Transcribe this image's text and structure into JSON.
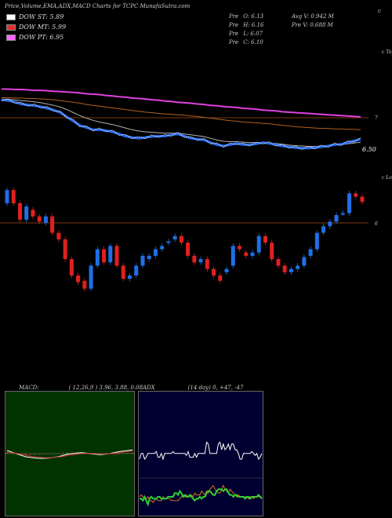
{
  "header": {
    "title": "Price,Volume,EMA,ADX,MACD Charts for TCPC MunafaSutra.com",
    "marker": "c"
  },
  "legend": [
    {
      "label": "DOW ST: 5.89",
      "color": "#ffffff"
    },
    {
      "label": "DOW MT: 5.99",
      "color": "#e03030"
    },
    {
      "label": "DOW PT: 6.95",
      "color": "#ff66ff"
    }
  ],
  "stats": {
    "col1": [
      {
        "k": "Pre",
        "v": "O: 6.13"
      },
      {
        "k": "Pre",
        "v": "H: 6.16"
      },
      {
        "k": "Pre",
        "v": "L: 6.07"
      },
      {
        "k": "Pre",
        "v": "C: 6.10"
      }
    ],
    "col2": [
      {
        "text": "Avg V: 0.942  M"
      },
      {
        "text": "Pre  V: 0.688  M"
      }
    ]
  },
  "price_panel": {
    "right_top": "c Tops",
    "price_label": "6.50",
    "mid_label": "7"
  },
  "candle_panel": {
    "right_top": "c Lows",
    "mid_label": "6"
  },
  "macd": {
    "title": "MACD:",
    "params": "( 12,26,9 ) 3.96, 3.88, 0.08",
    "colors": {
      "bg": "#003300",
      "macd": "#ffffff",
      "signal": "#d03030"
    }
  },
  "adx": {
    "title": "ADX",
    "params": "(14  day) 0, +47, -47",
    "colors": {
      "bg": "#000030",
      "adx": "#ffffff",
      "plus": "#30d030",
      "minus": "#e07020"
    }
  },
  "chart_data": {
    "type": "candlestick",
    "candles": [
      {
        "o": 6.9,
        "c": 7.1
      },
      {
        "o": 7.1,
        "c": 6.9
      },
      {
        "o": 6.9,
        "c": 6.65
      },
      {
        "o": 6.65,
        "c": 6.85
      },
      {
        "o": 6.8,
        "c": 6.7
      },
      {
        "o": 6.7,
        "c": 6.62
      },
      {
        "o": 6.6,
        "c": 6.7
      },
      {
        "o": 6.7,
        "c": 6.45
      },
      {
        "o": 6.45,
        "c": 6.35
      },
      {
        "o": 6.35,
        "c": 6.05
      },
      {
        "o": 6.05,
        "c": 5.8
      },
      {
        "o": 5.8,
        "c": 5.7
      },
      {
        "o": 5.72,
        "c": 5.6
      },
      {
        "o": 5.6,
        "c": 5.95
      },
      {
        "o": 5.95,
        "c": 6.2
      },
      {
        "o": 6.2,
        "c": 6.0
      },
      {
        "o": 6.0,
        "c": 6.25
      },
      {
        "o": 6.25,
        "c": 5.95
      },
      {
        "o": 5.95,
        "c": 5.75
      },
      {
        "o": 5.75,
        "c": 5.8
      },
      {
        "o": 5.8,
        "c": 5.95
      },
      {
        "o": 5.95,
        "c": 6.1
      },
      {
        "o": 6.05,
        "c": 6.1
      },
      {
        "o": 6.1,
        "c": 6.2
      },
      {
        "o": 6.2,
        "c": 6.25
      },
      {
        "o": 6.3,
        "c": 6.32
      },
      {
        "o": 6.35,
        "c": 6.4
      },
      {
        "o": 6.4,
        "c": 6.3
      },
      {
        "o": 6.3,
        "c": 6.1
      },
      {
        "o": 6.1,
        "c": 6.0
      },
      {
        "o": 6.0,
        "c": 6.05
      },
      {
        "o": 6.05,
        "c": 5.9
      },
      {
        "o": 5.9,
        "c": 5.8
      },
      {
        "o": 5.8,
        "c": 5.72
      },
      {
        "o": 5.85,
        "c": 5.9
      },
      {
        "o": 5.95,
        "c": 6.25
      },
      {
        "o": 6.25,
        "c": 6.2
      },
      {
        "o": 6.15,
        "c": 6.1
      },
      {
        "o": 6.1,
        "c": 6.15
      },
      {
        "o": 6.15,
        "c": 6.4
      },
      {
        "o": 6.4,
        "c": 6.3
      },
      {
        "o": 6.3,
        "c": 6.05
      },
      {
        "o": 6.05,
        "c": 5.95
      },
      {
        "o": 5.95,
        "c": 5.85
      },
      {
        "o": 5.85,
        "c": 5.9
      },
      {
        "o": 5.9,
        "c": 5.95
      },
      {
        "o": 5.95,
        "c": 6.08
      },
      {
        "o": 6.1,
        "c": 6.2
      },
      {
        "o": 6.2,
        "c": 6.45
      },
      {
        "o": 6.45,
        "c": 6.55
      },
      {
        "o": 6.55,
        "c": 6.62
      },
      {
        "o": 6.62,
        "c": 6.72
      },
      {
        "o": 6.75,
        "c": 6.75
      },
      {
        "o": 6.75,
        "c": 7.05
      },
      {
        "o": 7.05,
        "c": 7.0
      },
      {
        "o": 7.0,
        "c": 6.92
      }
    ],
    "ema_short": [
      7.6,
      7.58,
      7.55,
      7.5,
      7.48,
      7.46,
      7.44,
      7.4,
      7.36,
      7.3,
      7.2,
      7.1,
      7.0,
      6.95,
      6.9,
      6.9,
      6.88,
      6.85,
      6.8,
      6.75,
      6.72,
      6.7,
      6.72,
      6.74,
      6.75,
      6.75,
      6.78,
      6.8,
      6.75,
      6.7,
      6.68,
      6.66,
      6.6,
      6.55,
      6.52,
      6.55,
      6.58,
      6.55,
      6.55,
      6.57,
      6.6,
      6.58,
      6.55,
      6.52,
      6.5,
      6.48,
      6.47,
      6.47,
      6.48,
      6.5,
      6.52,
      6.55,
      6.56,
      6.6,
      6.64,
      6.68
    ],
    "ema_mid": [
      7.62,
      7.61,
      7.6,
      7.58,
      7.57,
      7.55,
      7.53,
      7.5,
      7.47,
      7.43,
      7.37,
      7.3,
      7.23,
      7.17,
      7.12,
      7.08,
      7.05,
      7.02,
      6.98,
      6.94,
      6.9,
      6.87,
      6.85,
      6.84,
      6.83,
      6.82,
      6.82,
      6.82,
      6.8,
      6.78,
      6.76,
      6.74,
      6.7,
      6.66,
      6.63,
      6.62,
      6.62,
      6.61,
      6.6,
      6.6,
      6.6,
      6.59,
      6.58,
      6.56,
      6.54,
      6.53,
      6.52,
      6.51,
      6.51,
      6.52,
      6.53,
      6.54,
      6.55,
      6.57,
      6.59,
      6.61
    ],
    "ema_long": [
      7.65,
      7.65,
      7.64,
      7.64,
      7.63,
      7.63,
      7.62,
      7.61,
      7.6,
      7.58,
      7.56,
      7.54,
      7.52,
      7.49,
      7.47,
      7.45,
      7.43,
      7.41,
      7.39,
      7.37,
      7.35,
      7.33,
      7.31,
      7.3,
      7.28,
      7.27,
      7.26,
      7.25,
      7.24,
      7.22,
      7.21,
      7.19,
      7.17,
      7.15,
      7.13,
      7.11,
      7.1,
      7.08,
      7.07,
      7.06,
      7.05,
      7.04,
      7.02,
      7.0,
      6.99,
      6.97,
      6.96,
      6.95,
      6.94,
      6.93,
      6.93,
      6.92,
      6.92,
      6.91,
      6.91,
      6.9
    ],
    "dma_long": [
      7.85,
      7.85,
      7.84,
      7.84,
      7.83,
      7.82,
      7.82,
      7.81,
      7.8,
      7.79,
      7.78,
      7.77,
      7.76,
      7.74,
      7.73,
      7.72,
      7.7,
      7.69,
      7.67,
      7.66,
      7.64,
      7.63,
      7.62,
      7.6,
      7.59,
      7.57,
      7.56,
      7.54,
      7.53,
      7.52,
      7.5,
      7.49,
      7.47,
      7.46,
      7.44,
      7.43,
      7.42,
      7.4,
      7.39,
      7.38,
      7.36,
      7.35,
      7.34,
      7.32,
      7.31,
      7.3,
      7.29,
      7.28,
      7.27,
      7.26,
      7.25,
      7.24,
      7.23,
      7.22,
      7.21,
      7.2
    ],
    "macd_line": [
      0.1,
      0.05,
      0.0,
      -0.05,
      -0.1,
      -0.12,
      -0.14,
      -0.15,
      -0.15,
      -0.14,
      -0.12,
      -0.1,
      -0.06,
      -0.02,
      0.0,
      0.02,
      0.03,
      0.02,
      0.0,
      -0.02,
      -0.03,
      -0.02,
      0.0,
      0.03,
      0.06,
      0.08,
      0.1,
      0.12
    ],
    "signal_line": [
      0.05,
      0.03,
      0.01,
      -0.02,
      -0.05,
      -0.08,
      -0.1,
      -0.12,
      -0.13,
      -0.13,
      -0.12,
      -0.11,
      -0.09,
      -0.06,
      -0.04,
      -0.02,
      0.0,
      0.01,
      0.01,
      0.0,
      -0.01,
      -0.01,
      0.0,
      0.01,
      0.03,
      0.05,
      0.07,
      0.09
    ],
    "adx_line": [
      30,
      33,
      33,
      30,
      31,
      33,
      33,
      33,
      33,
      33,
      34,
      31,
      31,
      33,
      30,
      33,
      33,
      33,
      33,
      33,
      34,
      33,
      33,
      33,
      33,
      33,
      33,
      33,
      32,
      34,
      31,
      31,
      31,
      33,
      31,
      33,
      33,
      33,
      33,
      33,
      39,
      38,
      33,
      33,
      33,
      33,
      33,
      38,
      39,
      35,
      38,
      35,
      36,
      38,
      35,
      38,
      38,
      35,
      35,
      33,
      30,
      30,
      33,
      33,
      33,
      33,
      33,
      34,
      33,
      32,
      33,
      30,
      31,
      33
    ],
    "plus_di": [
      9,
      9,
      8,
      10,
      8,
      6,
      9,
      10,
      9,
      9,
      9,
      10,
      10,
      9,
      9,
      9,
      9,
      10,
      10,
      10,
      10,
      12,
      12,
      11,
      13,
      12,
      10,
      11,
      10,
      10,
      11,
      10,
      9,
      8,
      9,
      9,
      10,
      9,
      10,
      10,
      12,
      13,
      13,
      12,
      11,
      11,
      13,
      14,
      14,
      14,
      13,
      14,
      14,
      12,
      11,
      11,
      10,
      11,
      11,
      10,
      10,
      10,
      10,
      9,
      10,
      10,
      9,
      10,
      10,
      10,
      10,
      11,
      10,
      9
    ],
    "minus_di": [
      10,
      11,
      10,
      9,
      9,
      10,
      8,
      8,
      7,
      8,
      9,
      8,
      8,
      8,
      10,
      9,
      9,
      9,
      9,
      8,
      8,
      8,
      8,
      8,
      9,
      10,
      11,
      10,
      11,
      10,
      10,
      11,
      10,
      12,
      11,
      11,
      11,
      13,
      12,
      11,
      13,
      12,
      14,
      15,
      16,
      14,
      13,
      12,
      12,
      14,
      16,
      14,
      13,
      12,
      14,
      13,
      12,
      11,
      10,
      11,
      10,
      10,
      10,
      10,
      10,
      9,
      10,
      10,
      9,
      10,
      10,
      10,
      10,
      10
    ]
  }
}
